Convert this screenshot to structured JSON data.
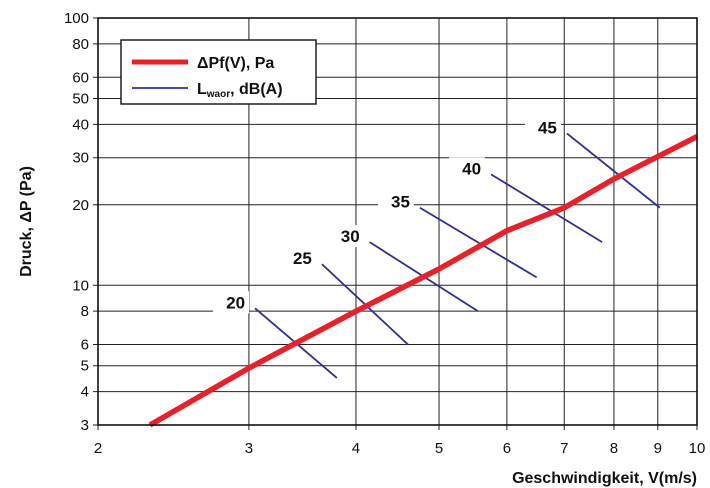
{
  "chart_data": {
    "type": "line",
    "xlabel": "Geschwindigkeit, V(m/s)",
    "ylabel": "Druck, ΔP (Pa)",
    "x_scale": "log",
    "y_scale": "log",
    "xlim": [
      2,
      10
    ],
    "ylim": [
      3,
      100
    ],
    "x_ticks": [
      "2",
      "3",
      "4",
      "5",
      "6",
      "7",
      "8",
      "9",
      "10"
    ],
    "y_ticks": [
      "3",
      "4",
      "5",
      "6",
      "8",
      "10",
      "20",
      "30",
      "40",
      "50",
      "60",
      "80",
      "100"
    ],
    "grid": true,
    "legend_position": "top-left",
    "legend": [
      {
        "text": "ΔPf(V), Pa",
        "color": "#e8202a"
      },
      {
        "text_main": "L",
        "text_sub": "waor",
        "text_rest": ", dB(A)",
        "color": "#2e3192"
      }
    ],
    "series": [
      {
        "name": "ΔPf(V), Pa",
        "color": "#e8202a",
        "points": [
          [
            2.3,
            3.0
          ],
          [
            3.0,
            4.9
          ],
          [
            4.0,
            8.0
          ],
          [
            5.0,
            11.5
          ],
          [
            6.0,
            16.0
          ],
          [
            7.0,
            19.5
          ],
          [
            8.0,
            25.0
          ],
          [
            10.0,
            36.0
          ]
        ]
      }
    ],
    "sound_lines": [
      {
        "label": "20",
        "start": [
          3.05,
          8.2
        ],
        "end": [
          3.8,
          4.5
        ]
      },
      {
        "label": "25",
        "start": [
          3.65,
          12.0
        ],
        "end": [
          4.6,
          6.0
        ]
      },
      {
        "label": "30",
        "start": [
          4.15,
          14.5
        ],
        "end": [
          5.55,
          8.0
        ]
      },
      {
        "label": "35",
        "start": [
          4.75,
          19.5
        ],
        "end": [
          6.5,
          10.7
        ]
      },
      {
        "label": "40",
        "start": [
          5.75,
          26.0
        ],
        "end": [
          7.75,
          14.5
        ]
      },
      {
        "label": "45",
        "start": [
          7.05,
          37.0
        ],
        "end": [
          9.05,
          19.5
        ]
      }
    ]
  }
}
